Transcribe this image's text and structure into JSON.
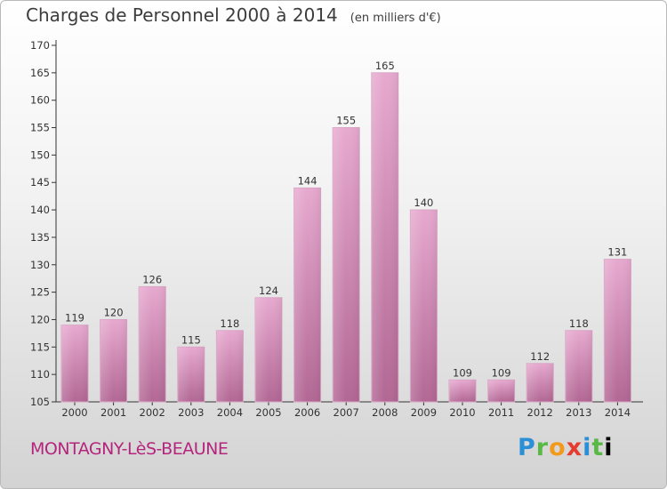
{
  "header": {
    "title": "Charges de Personnel 2000 à 2014",
    "unit": "(en milliers d'€)"
  },
  "footer": {
    "place": "MONTAGNY-LèS-BEAUNE",
    "logo": "Proxiti"
  },
  "colors": {
    "bar_top": "#e7a9cf",
    "bar_bottom": "#b26794",
    "place_text": "#b5257d"
  },
  "chart_data": {
    "type": "bar",
    "title": "Charges de Personnel 2000 à 2014",
    "subtitle": "(en milliers d'€)",
    "categories": [
      "2000",
      "2001",
      "2002",
      "2003",
      "2004",
      "2005",
      "2006",
      "2007",
      "2008",
      "2009",
      "2010",
      "2011",
      "2012",
      "2013",
      "2014"
    ],
    "values": [
      119,
      120,
      126,
      115,
      118,
      124,
      144,
      155,
      165,
      140,
      109,
      109,
      112,
      118,
      131
    ],
    "ylim": [
      105,
      170
    ],
    "yticks": [
      105,
      110,
      115,
      120,
      125,
      130,
      135,
      140,
      145,
      150,
      155,
      160,
      165,
      170
    ],
    "grid": false,
    "legend": "none"
  }
}
